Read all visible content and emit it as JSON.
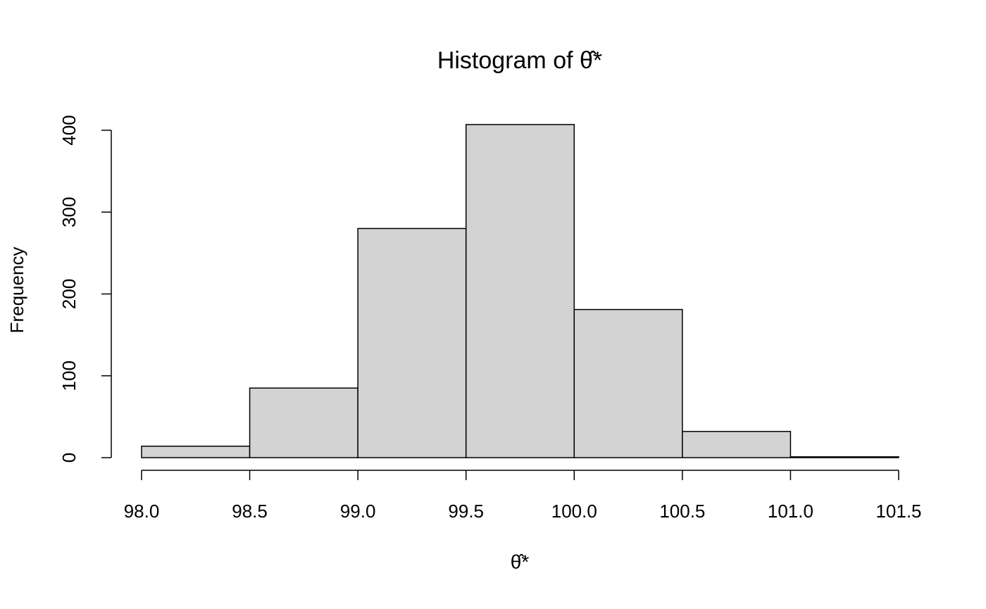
{
  "chart_data": {
    "type": "histogram",
    "title": "Histogram of θ̂*",
    "x_label": "θ̂*",
    "y_label": "Frequency",
    "bins": [
      98.0,
      98.5,
      99.0,
      99.5,
      100.0,
      100.5,
      101.0,
      101.5
    ],
    "values": [
      14,
      85,
      280,
      407,
      181,
      32,
      1
    ],
    "color": "#d3d3d3",
    "xlim": [
      98,
      101.5
    ],
    "xticks": [
      {
        "value": 98,
        "label": "98.0"
      },
      98.5,
      {
        "value": 99,
        "label": "99.0"
      },
      99.5,
      {
        "value": 100,
        "label": "100.0"
      },
      100.5,
      {
        "value": 101,
        "label": "101.0"
      },
      101.5
    ],
    "ylim": [
      0,
      407
    ],
    "yticks": [
      0,
      100,
      200,
      300,
      400
    ]
  }
}
